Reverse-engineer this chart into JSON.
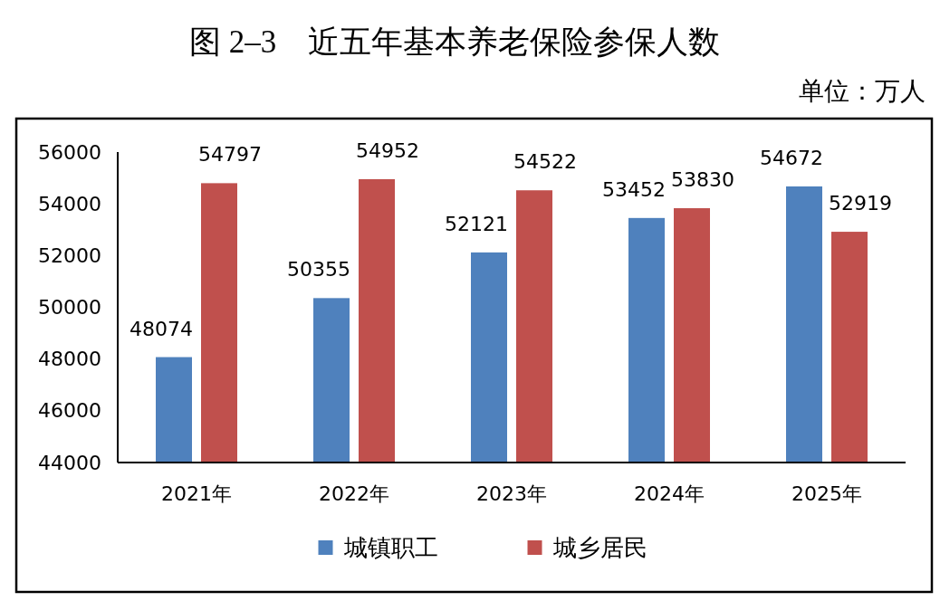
{
  "chart_data": {
    "type": "bar",
    "title": "图 2–3    近五年基本养老保险参保人数",
    "annotations": [
      "单位：万人"
    ],
    "categories": [
      "2021年",
      "2022年",
      "2023年",
      "2024年",
      "2025年"
    ],
    "series": [
      {
        "name": "城镇职工",
        "color": "#4f81bd",
        "values": [
          48074,
          50355,
          52121,
          53452,
          54672
        ]
      },
      {
        "name": "城乡居民",
        "color": "#c0504d",
        "values": [
          54797,
          54952,
          54522,
          53830,
          52919
        ]
      }
    ],
    "ylim": [
      44000,
      56000
    ],
    "yticks": [
      44000,
      46000,
      48000,
      50000,
      52000,
      54000,
      56000
    ],
    "data_labels": true,
    "legend": "bottom"
  }
}
